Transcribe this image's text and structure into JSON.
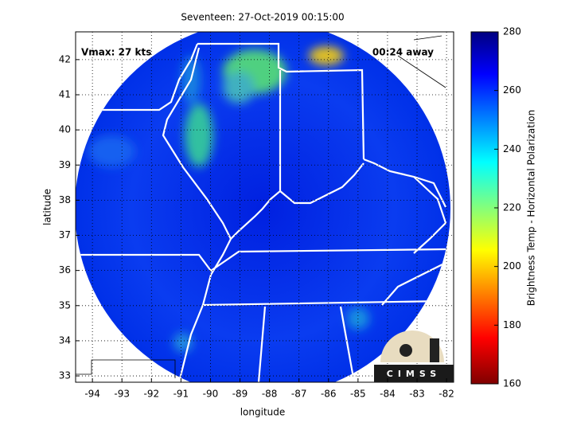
{
  "title": "Seventeen: 27-Oct-2019 00:15:00",
  "xlabel": "longitude",
  "ylabel": "latitude",
  "xlim": [
    -94.57,
    -81.76
  ],
  "ylim": [
    32.82,
    42.79
  ],
  "xticks": [
    -94,
    -93,
    -92,
    -91,
    -90,
    -89,
    -88,
    -87,
    -86,
    -85,
    -84,
    -83,
    -82
  ],
  "yticks": [
    33,
    34,
    35,
    36,
    37,
    38,
    39,
    40,
    41,
    42
  ],
  "annotations": {
    "left": "Vmax: 27 kts",
    "right": "00:24 away"
  },
  "colorbar": {
    "label": "Brightness Temp - Horizontal Polarization",
    "lim": [
      160,
      280
    ],
    "ticks": [
      160,
      180,
      200,
      220,
      240,
      260,
      280
    ]
  },
  "logo": {
    "text": "CIMSS"
  }
}
